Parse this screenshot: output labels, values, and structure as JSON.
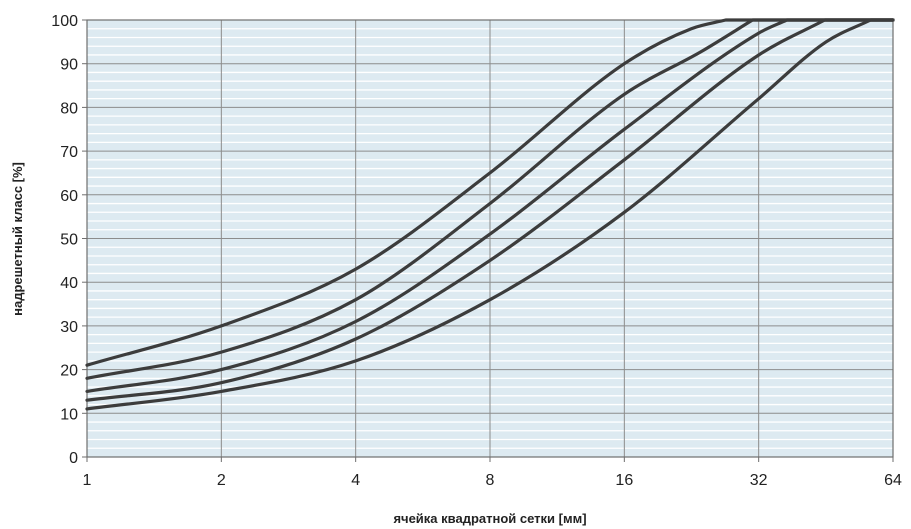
{
  "chart_data": {
    "type": "line",
    "xlabel": "ячейка квадратной сетки [мм]",
    "ylabel": "надрешетный класс [%]",
    "x_scale": "log2",
    "xlim": [
      1,
      64
    ],
    "ylim": [
      0,
      100
    ],
    "x_ticks": [
      "1",
      "2",
      "4",
      "8",
      "16",
      "32",
      "64"
    ],
    "y_ticks": [
      "0",
      "10",
      "20",
      "30",
      "40",
      "50",
      "60",
      "70",
      "80",
      "90",
      "100"
    ],
    "grid": true,
    "legend": "none",
    "series": [
      {
        "x": [
          1,
          2,
          4,
          8,
          16,
          22.6,
          27
        ],
        "y": [
          21,
          30,
          43,
          65,
          90,
          98,
          100
        ]
      },
      {
        "x": [
          1,
          2,
          4,
          8,
          16,
          24,
          31
        ],
        "y": [
          18,
          24,
          36,
          58,
          83,
          93,
          100
        ]
      },
      {
        "x": [
          1,
          2,
          4,
          8,
          16,
          32,
          37
        ],
        "y": [
          15,
          20,
          31,
          51,
          75,
          97,
          100
        ]
      },
      {
        "x": [
          1,
          2,
          4,
          8,
          16,
          32,
          45
        ],
        "y": [
          13,
          17,
          27,
          45,
          68,
          92,
          100
        ]
      },
      {
        "x": [
          1,
          2,
          4,
          8,
          16,
          32,
          45.3,
          57
        ],
        "y": [
          11,
          15,
          22,
          36,
          56,
          82,
          95,
          100
        ]
      }
    ],
    "colors": {
      "curve": "#3c3c3c",
      "plot_bg": "#ddeaf1",
      "major_grid": "#8c8c8c",
      "minor_grid": "#ffffff",
      "frame": "#6e6e6e"
    }
  }
}
